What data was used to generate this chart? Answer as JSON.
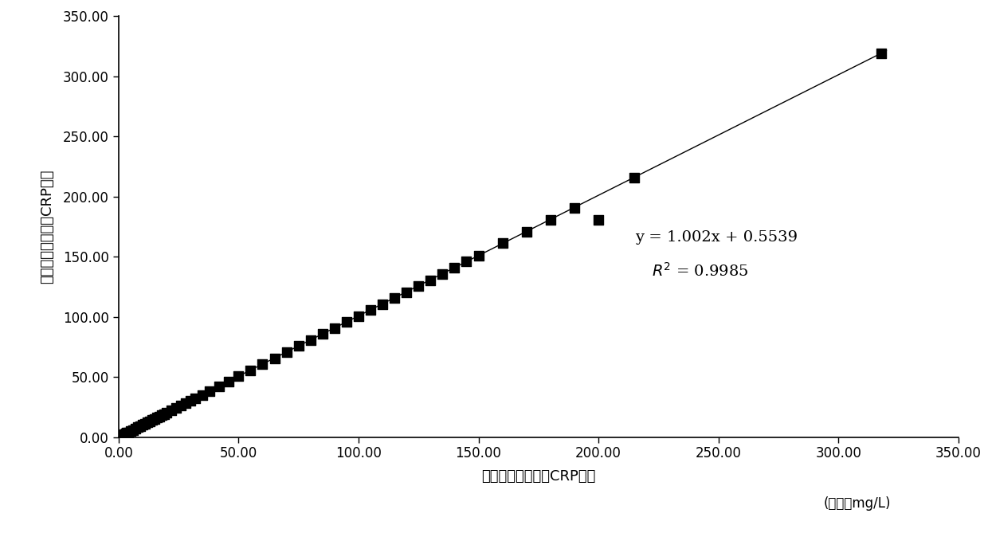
{
  "x_data": [
    0.5,
    1.0,
    1.5,
    2.0,
    2.5,
    3.0,
    3.5,
    4.0,
    5.0,
    6.0,
    7.0,
    8.0,
    9.0,
    10.0,
    11.0,
    12.0,
    13.0,
    14.0,
    15.0,
    16.0,
    17.0,
    18.0,
    19.0,
    20.0,
    22.0,
    24.0,
    26.0,
    28.0,
    30.0,
    32.0,
    35.0,
    38.0,
    42.0,
    46.0,
    50.0,
    55.0,
    60.0,
    65.0,
    70.0,
    75.0,
    80.0,
    85.0,
    90.0,
    95.0,
    100.0,
    105.0,
    110.0,
    115.0,
    120.0,
    125.0,
    130.0,
    135.0,
    140.0,
    145.0,
    150.0,
    160.0,
    170.0,
    180.0,
    190.0,
    200.0,
    215.0,
    318.0
  ],
  "y_data": [
    0.5,
    1.0,
    1.5,
    2.0,
    2.5,
    3.0,
    3.5,
    4.0,
    5.0,
    6.0,
    7.0,
    8.0,
    9.0,
    10.0,
    11.0,
    12.0,
    13.0,
    14.0,
    15.0,
    16.0,
    17.0,
    18.0,
    19.0,
    20.0,
    22.0,
    24.0,
    26.0,
    28.0,
    30.0,
    32.0,
    35.0,
    38.0,
    42.0,
    46.0,
    50.5,
    55.5,
    60.5,
    65.0,
    70.5,
    76.0,
    80.5,
    85.5,
    90.5,
    95.5,
    100.5,
    105.5,
    110.5,
    115.5,
    120.5,
    125.5,
    130.5,
    135.5,
    140.5,
    146.0,
    150.5,
    161.0,
    170.5,
    180.5,
    190.5,
    180.5,
    215.5,
    319.0
  ],
  "slope": 1.002,
  "intercept": 0.5539,
  "r_squared": 0.9985,
  "xlabel": "本发明全血全量程CRP试剂",
  "xlabel2": "(单位：mg/L)",
  "ylabel": "国际知名品牌血清CRP试剂",
  "xlim": [
    0,
    350
  ],
  "ylim": [
    0,
    350
  ],
  "xticks": [
    0.0,
    50.0,
    100.0,
    150.0,
    200.0,
    250.0,
    300.0,
    350.0
  ],
  "yticks": [
    0.0,
    50.0,
    100.0,
    150.0,
    200.0,
    250.0,
    300.0,
    350.0
  ],
  "xtick_labels": [
    "0.00",
    "50.00",
    "100.00",
    "150.00",
    "200.00",
    "250.00",
    "300.00",
    "350.00"
  ],
  "ytick_labels": [
    "0.00",
    "50.00",
    "100.00",
    "150.00",
    "200.00",
    "250.00",
    "300.00",
    "350.00"
  ],
  "marker_color": "#000000",
  "line_color": "#000000",
  "bg_color": "#ffffff",
  "eq_line1": "y = 1.002x + 0.5539",
  "eq_line2": "$R^2$ = 0.9985",
  "equation_x": 0.615,
  "equation_y": 0.42,
  "marker_size": 8
}
